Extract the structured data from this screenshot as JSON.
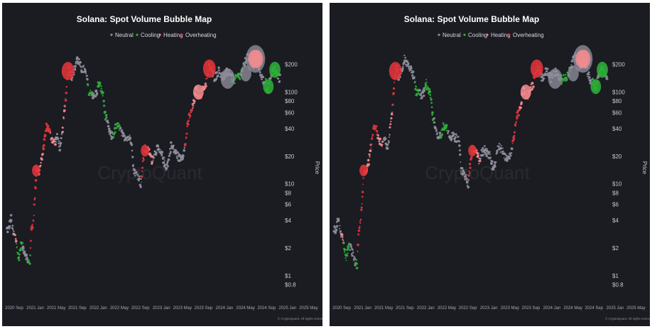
{
  "panels": [
    {
      "id": "panel-0"
    },
    {
      "id": "panel-1"
    }
  ],
  "chart_data": {
    "type": "scatter",
    "title": "Solana: Spot Volume Bubble Map",
    "ylabel": "Price",
    "y_scale": "log",
    "y_ticks": [
      0.8,
      1,
      2,
      4,
      6,
      8,
      10,
      20,
      40,
      60,
      80,
      100,
      200
    ],
    "y_tick_labels": [
      "$0.8",
      "$1",
      "$2",
      "$4",
      "$6",
      "$8",
      "$10",
      "$20",
      "$40",
      "$60",
      "$80",
      "$100",
      "$200"
    ],
    "x_tick_labels": [
      "2020 Sep",
      "2021 Jan",
      "2021 May",
      "2021 Sep",
      "2022 Jan",
      "2022 May",
      "2022 Sep",
      "2023 Jan",
      "2023 May",
      "2023 Sep",
      "2024 Jan",
      "2024 May",
      "2024 Sep",
      "2025 Jan",
      "2025 May"
    ],
    "xlim": [
      "2020-08-01",
      "2025-07-01"
    ],
    "ylim": [
      0.75,
      300
    ],
    "grid": false,
    "legend_position": "top-center",
    "watermark": "CryptoQuant",
    "credit": "© CryptoQuant. All rights reserved.",
    "categories": [
      {
        "name": "Neutral",
        "color": "#8e8e9c"
      },
      {
        "name": "Cooling",
        "color": "#2fae3a"
      },
      {
        "name": "Heating",
        "color": "#ee8b8e"
      },
      {
        "name": "Overheating",
        "color": "#e0353a"
      }
    ],
    "bubble_size_note": "bubble radius scales with spot volume",
    "price_path": [
      [
        "2020-08-15",
        3.2
      ],
      [
        "2020-09-01",
        4.2
      ],
      [
        "2020-09-15",
        2.9
      ],
      [
        "2020-10-01",
        2.6
      ],
      [
        "2020-10-20",
        1.5
      ],
      [
        "2020-11-05",
        2.2
      ],
      [
        "2020-11-25",
        1.9
      ],
      [
        "2020-12-15",
        1.5
      ],
      [
        "2021-01-01",
        1.3
      ],
      [
        "2021-01-10",
        3.0
      ],
      [
        "2021-01-25",
        4.0
      ],
      [
        "2021-02-05",
        8.0
      ],
      [
        "2021-02-15",
        15.0
      ],
      [
        "2021-03-01",
        13.0
      ],
      [
        "2021-03-20",
        18.0
      ],
      [
        "2021-04-05",
        28.0
      ],
      [
        "2021-04-20",
        42.0
      ],
      [
        "2021-05-05",
        40.0
      ],
      [
        "2021-05-20",
        32.0
      ],
      [
        "2021-06-10",
        28.0
      ],
      [
        "2021-07-01",
        32.0
      ],
      [
        "2021-07-20",
        24.0
      ],
      [
        "2021-08-05",
        40.0
      ],
      [
        "2021-08-20",
        70.0
      ],
      [
        "2021-09-05",
        150.0
      ],
      [
        "2021-09-15",
        190.0
      ],
      [
        "2021-10-01",
        145.0
      ],
      [
        "2021-10-20",
        170.0
      ],
      [
        "2021-11-05",
        230.0
      ],
      [
        "2021-11-20",
        210.0
      ],
      [
        "2021-12-05",
        180.0
      ],
      [
        "2021-12-25",
        175.0
      ],
      [
        "2022-01-10",
        140.0
      ],
      [
        "2022-01-25",
        95.0
      ],
      [
        "2022-02-10",
        100.0
      ],
      [
        "2022-02-25",
        88.0
      ],
      [
        "2022-03-15",
        100.0
      ],
      [
        "2022-03-28",
        125.0
      ],
      [
        "2022-04-10",
        110.0
      ],
      [
        "2022-04-25",
        95.0
      ],
      [
        "2022-05-10",
        55.0
      ],
      [
        "2022-05-25",
        45.0
      ],
      [
        "2022-06-15",
        33.0
      ],
      [
        "2022-07-01",
        34.0
      ],
      [
        "2022-07-20",
        42.0
      ],
      [
        "2022-08-10",
        42.0
      ],
      [
        "2022-09-01",
        33.0
      ],
      [
        "2022-09-20",
        33.0
      ],
      [
        "2022-10-10",
        32.0
      ],
      [
        "2022-10-30",
        30.0
      ],
      [
        "2022-11-10",
        15.0
      ],
      [
        "2022-11-25",
        13.0
      ],
      [
        "2022-12-15",
        12.0
      ],
      [
        "2022-12-30",
        9.9
      ],
      [
        "2023-01-10",
        16.0
      ],
      [
        "2023-01-25",
        24.0
      ],
      [
        "2023-02-10",
        23.0
      ],
      [
        "2023-02-25",
        22.0
      ],
      [
        "2023-03-10",
        18.0
      ],
      [
        "2023-03-25",
        21.0
      ],
      [
        "2023-04-15",
        24.0
      ],
      [
        "2023-05-01",
        22.0
      ],
      [
        "2023-05-20",
        20.0
      ],
      [
        "2023-06-10",
        15.0
      ],
      [
        "2023-06-25",
        17.0
      ],
      [
        "2023-07-15",
        26.0
      ],
      [
        "2023-08-01",
        24.0
      ],
      [
        "2023-08-20",
        21.0
      ],
      [
        "2023-09-10",
        19.0
      ],
      [
        "2023-09-25",
        20.0
      ],
      [
        "2023-10-10",
        23.0
      ],
      [
        "2023-10-25",
        35.0
      ],
      [
        "2023-11-10",
        55.0
      ],
      [
        "2023-11-25",
        60.0
      ],
      [
        "2023-12-10",
        75.0
      ],
      [
        "2023-12-25",
        105.0
      ],
      [
        "2024-01-10",
        95.0
      ],
      [
        "2024-01-25",
        92.0
      ],
      [
        "2024-02-10",
        108.0
      ],
      [
        "2024-02-25",
        120.0
      ],
      [
        "2024-03-10",
        150.0
      ],
      [
        "2024-03-20",
        190.0
      ],
      [
        "2024-04-05",
        175.0
      ],
      [
        "2024-04-20",
        145.0
      ],
      [
        "2024-05-05",
        150.0
      ],
      [
        "2024-05-20",
        170.0
      ],
      [
        "2024-06-10",
        155.0
      ],
      [
        "2024-06-25",
        140.0
      ],
      [
        "2024-07-15",
        165.0
      ],
      [
        "2024-08-01",
        170.0
      ],
      [
        "2024-08-15",
        145.0
      ],
      [
        "2024-09-01",
        135.0
      ],
      [
        "2024-09-20",
        145.0
      ],
      [
        "2024-10-10",
        150.0
      ],
      [
        "2024-10-25",
        170.0
      ],
      [
        "2024-11-10",
        210.0
      ],
      [
        "2024-11-25",
        245.0
      ],
      [
        "2024-12-10",
        220.0
      ],
      [
        "2024-12-25",
        195.0
      ],
      [
        "2025-01-10",
        200.0
      ],
      [
        "2025-01-20",
        255.0
      ],
      [
        "2025-02-05",
        200.0
      ],
      [
        "2025-02-20",
        160.0
      ],
      [
        "2025-03-10",
        130.0
      ],
      [
        "2025-03-25",
        135.0
      ],
      [
        "2025-04-08",
        105.0
      ],
      [
        "2025-04-25",
        145.0
      ],
      [
        "2025-05-10",
        170.0
      ],
      [
        "2025-05-25",
        175.0
      ],
      [
        "2025-06-10",
        148.0
      ],
      [
        "2025-06-25",
        140.0
      ]
    ],
    "segments": [
      {
        "from": "2020-08-01",
        "to": "2020-09-20",
        "category": "Neutral"
      },
      {
        "from": "2020-09-20",
        "to": "2020-10-05",
        "category": "Heating"
      },
      {
        "from": "2020-10-05",
        "to": "2020-11-15",
        "category": "Cooling"
      },
      {
        "from": "2020-11-15",
        "to": "2020-12-20",
        "category": "Neutral"
      },
      {
        "from": "2020-12-20",
        "to": "2021-01-05",
        "category": "Cooling"
      },
      {
        "from": "2021-01-05",
        "to": "2021-02-25",
        "category": "Overheating"
      },
      {
        "from": "2021-02-25",
        "to": "2021-04-01",
        "category": "Heating"
      },
      {
        "from": "2021-04-01",
        "to": "2021-05-15",
        "category": "Overheating"
      },
      {
        "from": "2021-05-15",
        "to": "2021-06-20",
        "category": "Heating"
      },
      {
        "from": "2021-06-20",
        "to": "2021-08-01",
        "category": "Neutral"
      },
      {
        "from": "2021-08-01",
        "to": "2021-08-20",
        "category": "Heating"
      },
      {
        "from": "2021-08-20",
        "to": "2021-09-25",
        "category": "Overheating"
      },
      {
        "from": "2021-09-25",
        "to": "2022-01-15",
        "category": "Neutral"
      },
      {
        "from": "2022-01-15",
        "to": "2022-02-15",
        "category": "Cooling"
      },
      {
        "from": "2022-02-15",
        "to": "2022-03-20",
        "category": "Neutral"
      },
      {
        "from": "2022-03-20",
        "to": "2022-05-20",
        "category": "Cooling"
      },
      {
        "from": "2022-05-20",
        "to": "2022-07-01",
        "category": "Neutral"
      },
      {
        "from": "2022-07-01",
        "to": "2022-08-15",
        "category": "Cooling"
      },
      {
        "from": "2022-08-15",
        "to": "2022-11-05",
        "category": "Neutral"
      },
      {
        "from": "2022-11-05",
        "to": "2023-01-01",
        "category": "Neutral"
      },
      {
        "from": "2023-01-01",
        "to": "2023-02-05",
        "category": "Overheating"
      },
      {
        "from": "2023-02-05",
        "to": "2023-03-20",
        "category": "Heating"
      },
      {
        "from": "2023-03-20",
        "to": "2023-10-15",
        "category": "Neutral"
      },
      {
        "from": "2023-10-15",
        "to": "2023-12-01",
        "category": "Overheating"
      },
      {
        "from": "2023-12-01",
        "to": "2024-01-05",
        "category": "Heating"
      },
      {
        "from": "2024-01-05",
        "to": "2024-02-05",
        "category": "Overheating"
      },
      {
        "from": "2024-02-05",
        "to": "2024-03-01",
        "category": "Heating"
      },
      {
        "from": "2024-03-01",
        "to": "2024-04-10",
        "category": "Overheating"
      },
      {
        "from": "2024-04-10",
        "to": "2024-08-20",
        "category": "Neutral"
      },
      {
        "from": "2024-08-20",
        "to": "2024-10-30",
        "category": "Cooling"
      },
      {
        "from": "2024-10-30",
        "to": "2025-01-05",
        "category": "Neutral"
      },
      {
        "from": "2025-01-05",
        "to": "2025-02-01",
        "category": "Heating"
      },
      {
        "from": "2025-02-01",
        "to": "2025-03-20",
        "category": "Neutral"
      },
      {
        "from": "2025-03-20",
        "to": "2025-04-20",
        "category": "Cooling"
      },
      {
        "from": "2025-04-20",
        "to": "2025-05-10",
        "category": "Neutral"
      },
      {
        "from": "2025-05-10",
        "to": "2025-06-15",
        "category": "Cooling"
      },
      {
        "from": "2025-06-15",
        "to": "2025-07-01",
        "category": "Neutral"
      }
    ],
    "large_bubbles": [
      {
        "date": "2021-09-08",
        "price": 170,
        "category": "Overheating",
        "volume": 0.55
      },
      {
        "date": "2024-03-22",
        "price": 180,
        "category": "Overheating",
        "volume": 0.55
      },
      {
        "date": "2024-01-10",
        "price": 100,
        "category": "Heating",
        "volume": 0.4
      },
      {
        "date": "2024-07-20",
        "price": 140,
        "category": "Neutral",
        "volume": 0.65
      },
      {
        "date": "2025-01-18",
        "price": 230,
        "category": "Neutral",
        "volume": 1.0
      },
      {
        "date": "2025-01-12",
        "price": 230,
        "category": "Heating",
        "volume": 0.55
      },
      {
        "date": "2025-01-26",
        "price": 230,
        "category": "Heating",
        "volume": 0.55
      },
      {
        "date": "2024-11-15",
        "price": 160,
        "category": "Neutral",
        "volume": 0.45
      },
      {
        "date": "2025-04-12",
        "price": 115,
        "category": "Cooling",
        "volume": 0.4
      },
      {
        "date": "2025-05-25",
        "price": 175,
        "category": "Cooling",
        "volume": 0.45
      },
      {
        "date": "2023-01-25",
        "price": 23,
        "category": "Overheating",
        "volume": 0.25
      },
      {
        "date": "2021-02-12",
        "price": 14,
        "category": "Overheating",
        "volume": 0.25
      }
    ]
  }
}
